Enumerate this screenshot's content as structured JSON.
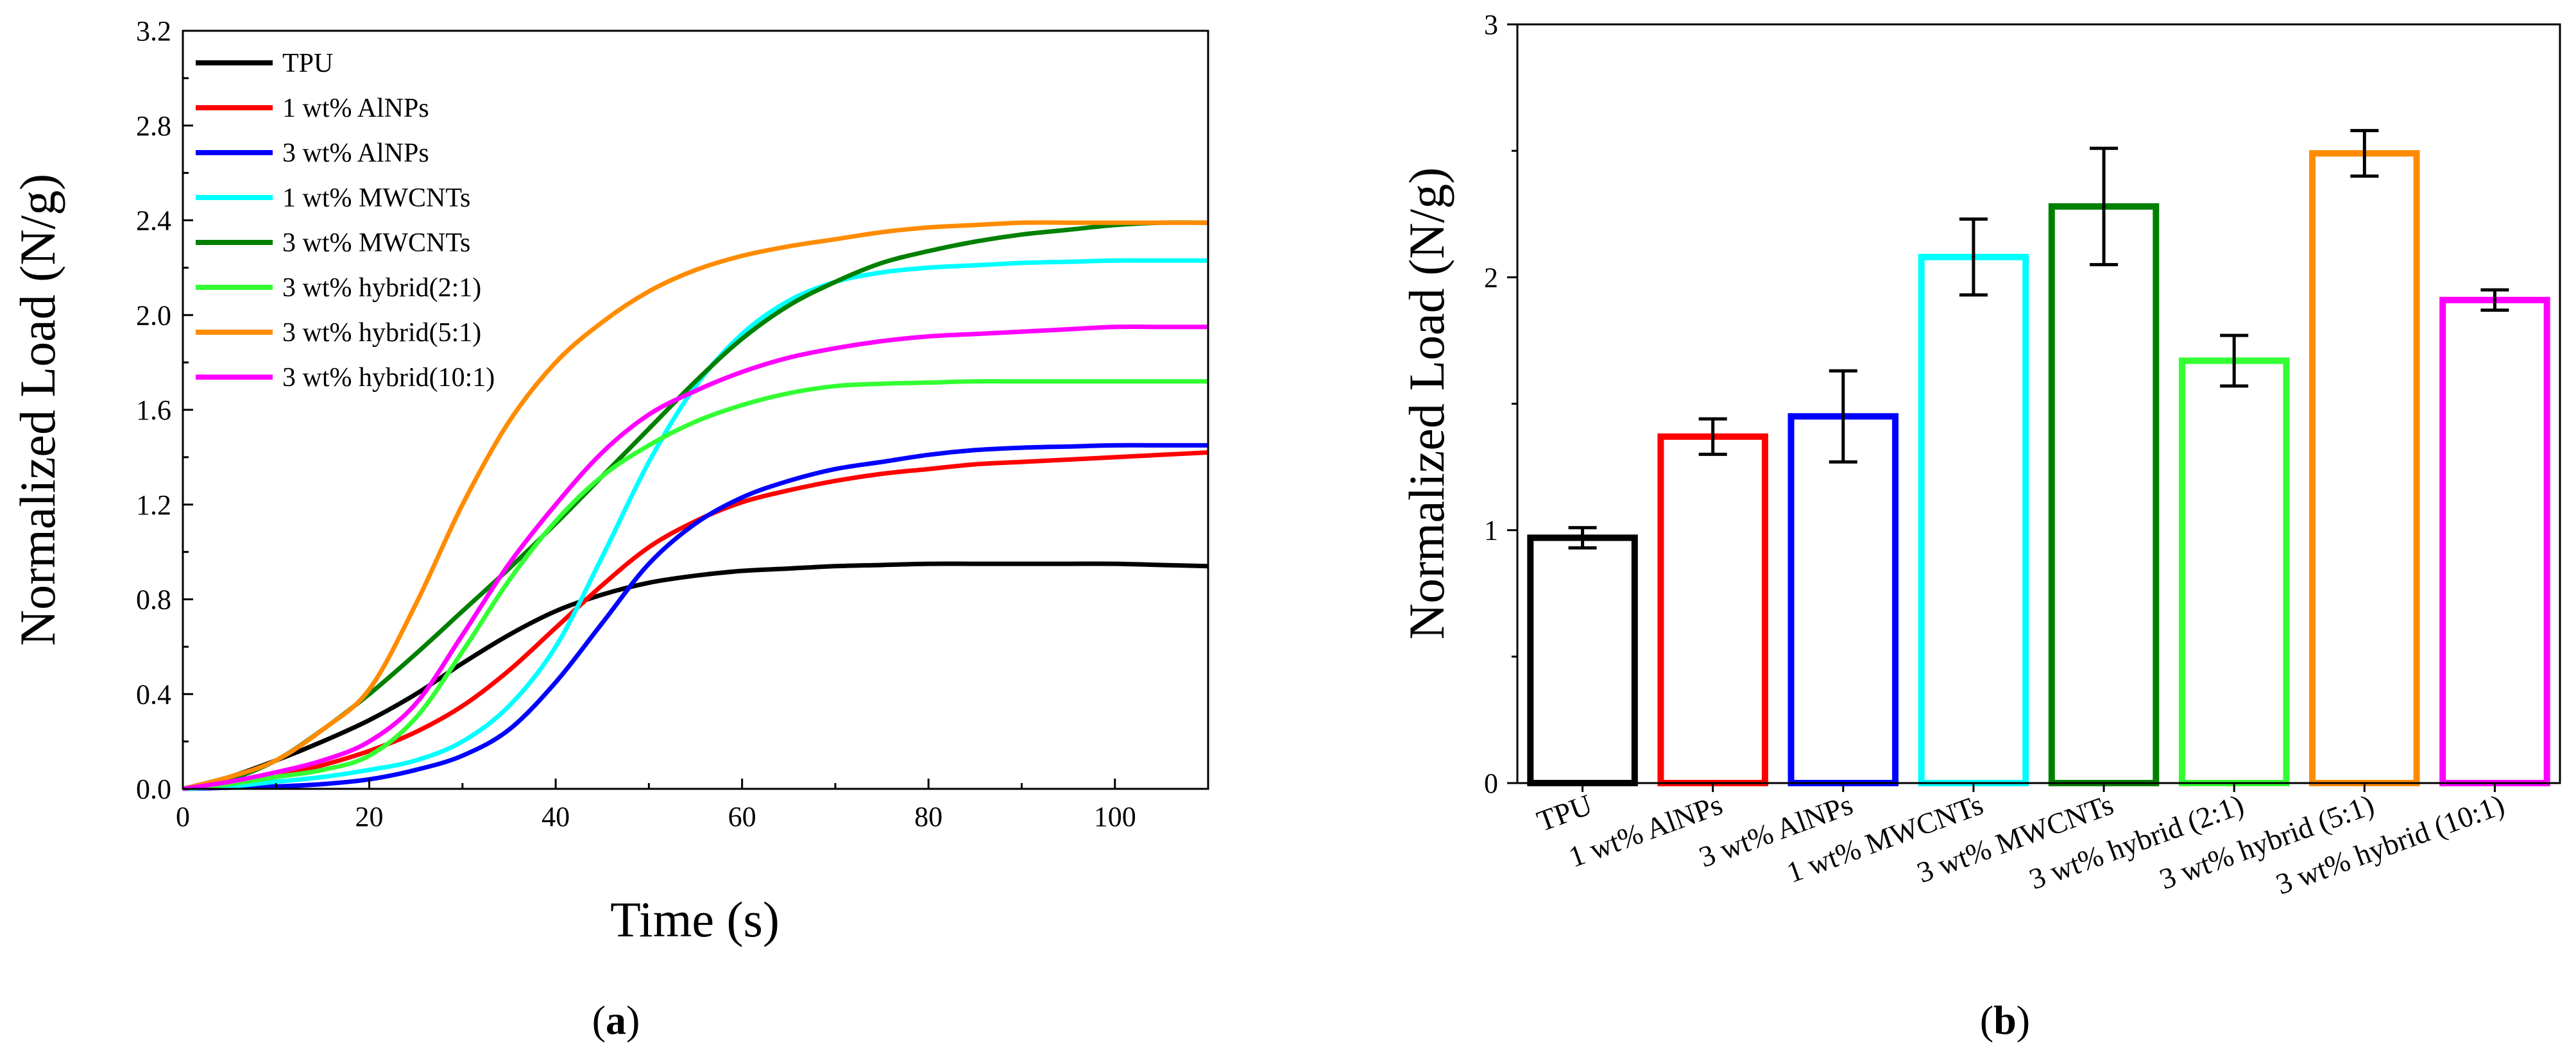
{
  "chart_data": [
    {
      "type": "line",
      "panel_label_open": "(",
      "panel_label_letter": "a",
      "panel_label_close": ")",
      "xlabel": "Time (s)",
      "ylabel": "Normalized Load (N/g)",
      "xlim": [
        0,
        110
      ],
      "ylim": [
        0,
        3.2
      ],
      "x_ticks": [
        "0",
        "20",
        "40",
        "60",
        "80",
        "100"
      ],
      "x_tick_values": [
        0,
        20,
        40,
        60,
        80,
        100
      ],
      "y_ticks": [
        "0.0",
        "0.4",
        "0.8",
        "1.2",
        "1.6",
        "2.0",
        "2.4",
        "2.8",
        "3.2"
      ],
      "y_tick_values": [
        0,
        0.4,
        0.8,
        1.2,
        1.6,
        2.0,
        2.4,
        2.8,
        3.2
      ],
      "legend_position": "top-left",
      "x": [
        0,
        5,
        10,
        15,
        20,
        25,
        30,
        35,
        40,
        45,
        50,
        55,
        60,
        65,
        70,
        75,
        80,
        85,
        90,
        95,
        100,
        105,
        110
      ],
      "series": [
        {
          "name": "TPU",
          "color": "#000000",
          "values": [
            0.0,
            0.05,
            0.12,
            0.2,
            0.29,
            0.4,
            0.53,
            0.65,
            0.75,
            0.82,
            0.87,
            0.9,
            0.92,
            0.93,
            0.94,
            0.945,
            0.95,
            0.95,
            0.95,
            0.95,
            0.95,
            0.945,
            0.94
          ]
        },
        {
          "name": "1 wt% AlNPs",
          "color": "#ff0000",
          "values": [
            0.0,
            0.02,
            0.05,
            0.1,
            0.16,
            0.24,
            0.35,
            0.5,
            0.68,
            0.86,
            1.02,
            1.13,
            1.21,
            1.26,
            1.3,
            1.33,
            1.35,
            1.37,
            1.38,
            1.39,
            1.4,
            1.41,
            1.42
          ]
        },
        {
          "name": "3 wt% AlNPs",
          "color": "#0000ff",
          "values": [
            0.0,
            0.005,
            0.01,
            0.02,
            0.04,
            0.08,
            0.14,
            0.25,
            0.45,
            0.7,
            0.95,
            1.12,
            1.23,
            1.3,
            1.35,
            1.38,
            1.41,
            1.43,
            1.44,
            1.445,
            1.45,
            1.45,
            1.45
          ]
        },
        {
          "name": "1 wt% MWCNTs",
          "color": "#00ffff",
          "values": [
            0.0,
            0.01,
            0.03,
            0.05,
            0.08,
            0.12,
            0.2,
            0.35,
            0.6,
            0.98,
            1.38,
            1.7,
            1.92,
            2.06,
            2.14,
            2.18,
            2.2,
            2.21,
            2.22,
            2.225,
            2.23,
            2.23,
            2.23
          ]
        },
        {
          "name": "3 wt% MWCNTs",
          "color": "#008000",
          "values": [
            0.0,
            0.04,
            0.12,
            0.25,
            0.4,
            0.57,
            0.75,
            0.93,
            1.12,
            1.32,
            1.52,
            1.72,
            1.9,
            2.04,
            2.14,
            2.22,
            2.27,
            2.31,
            2.34,
            2.36,
            2.38,
            2.39,
            2.39
          ]
        },
        {
          "name": "3 wt% hybrid(2:1)",
          "color": "#33ff33",
          "values": [
            0.0,
            0.02,
            0.05,
            0.08,
            0.14,
            0.3,
            0.58,
            0.88,
            1.13,
            1.32,
            1.45,
            1.55,
            1.62,
            1.67,
            1.7,
            1.71,
            1.715,
            1.72,
            1.72,
            1.72,
            1.72,
            1.72,
            1.72
          ]
        },
        {
          "name": "3 wt% hybrid(5:1)",
          "color": "#ff8c00",
          "values": [
            0.0,
            0.05,
            0.12,
            0.25,
            0.42,
            0.78,
            1.2,
            1.55,
            1.8,
            1.97,
            2.1,
            2.19,
            2.25,
            2.29,
            2.32,
            2.35,
            2.37,
            2.38,
            2.39,
            2.39,
            2.39,
            2.39,
            2.39
          ]
        },
        {
          "name": "3 wt% hybrid(10:1)",
          "color": "#ff00ff",
          "values": [
            0.0,
            0.03,
            0.07,
            0.12,
            0.2,
            0.36,
            0.65,
            0.95,
            1.2,
            1.42,
            1.58,
            1.68,
            1.76,
            1.82,
            1.86,
            1.89,
            1.91,
            1.92,
            1.93,
            1.94,
            1.95,
            1.95,
            1.95
          ]
        }
      ]
    },
    {
      "type": "bar",
      "panel_label_open": "(",
      "panel_label_letter": "b",
      "panel_label_close": ")",
      "xlabel": "",
      "ylabel": "Normalized Load (N/g)",
      "ylim": [
        0,
        3
      ],
      "y_ticks": [
        "0",
        "1",
        "2",
        "3"
      ],
      "y_tick_values": [
        0,
        1,
        2,
        3
      ],
      "categories": [
        "TPU",
        "1 wt% AlNPs",
        "3 wt% AlNPs",
        "1 wt% MWCNTs",
        "3 wt% MWCNTs",
        "3 wt% hybrid (2:1)",
        "3 wt% hybrid (5:1)",
        "3 wt% hybrid (10:1)"
      ],
      "values": [
        0.97,
        1.37,
        1.45,
        2.08,
        2.28,
        1.67,
        2.49,
        1.91
      ],
      "errors": [
        0.04,
        0.07,
        0.18,
        0.15,
        0.23,
        0.1,
        0.09,
        0.04
      ],
      "colors": [
        "#000000",
        "#ff0000",
        "#0000ff",
        "#00ffff",
        "#008000",
        "#33ff33",
        "#ff8c00",
        "#ff00ff"
      ]
    }
  ]
}
